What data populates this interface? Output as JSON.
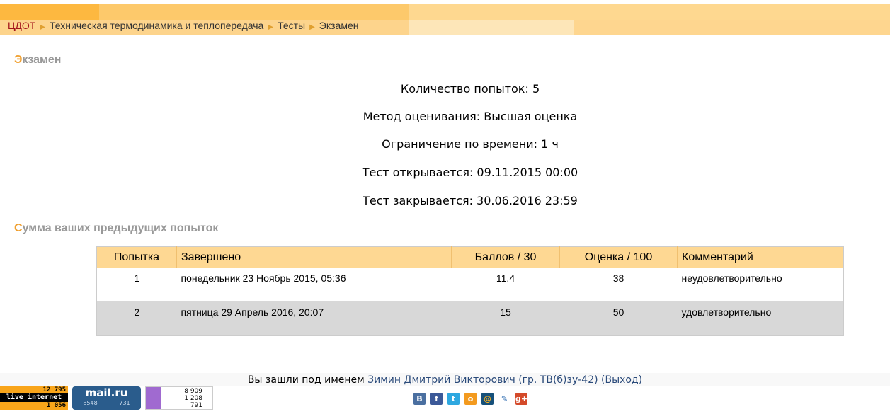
{
  "breadcrumb": {
    "items": [
      "ЦДОТ",
      "Техническая термодинамика и теплопередача",
      "Тесты",
      "Экзамен"
    ]
  },
  "page_title": {
    "first": "Э",
    "rest": "кзамен"
  },
  "info": [
    "Количество попыток: 5",
    "Метод оценивания: Высшая оценка",
    "Ограничение по времени: 1 ч",
    "Тест открывается: 09.11.2015 00:00",
    "Тест закрывается: 30.06.2016 23:59"
  ],
  "summary_title": {
    "first": "С",
    "rest": "умма ваших предыдущих попыток"
  },
  "table": {
    "headers": [
      "Попытка",
      "Завершено",
      "Баллов / 30",
      "Оценка / 100",
      "Комментарий"
    ],
    "rows": [
      [
        "1",
        "понедельник 23 Ноябрь 2015, 05:36",
        "11.4",
        "38",
        "неудовлетворительно"
      ],
      [
        "2",
        "пятница 29 Апрель 2016, 20:07",
        "15",
        "50",
        "удовлетворительно"
      ]
    ]
  },
  "footer": {
    "logged_in": "Вы зашли под именем",
    "user": "Зимин Дмитрий Викторович (гр. ТВ(б)зу-42)",
    "logout": "(Выход)"
  },
  "counters": {
    "liveinternet": {
      "top": "12 795",
      "label": "live internet",
      "bottom": "1 056"
    },
    "mailru": {
      "label": "mail.ru",
      "a": "8548",
      "b": "731"
    },
    "yandex": [
      "8 909",
      "1 208",
      "791"
    ]
  },
  "social": [
    "vk-icon",
    "facebook-icon",
    "twitter-icon",
    "odnoklassniki-icon",
    "mailru-icon",
    "livejournal-icon",
    "googleplus-icon"
  ]
}
